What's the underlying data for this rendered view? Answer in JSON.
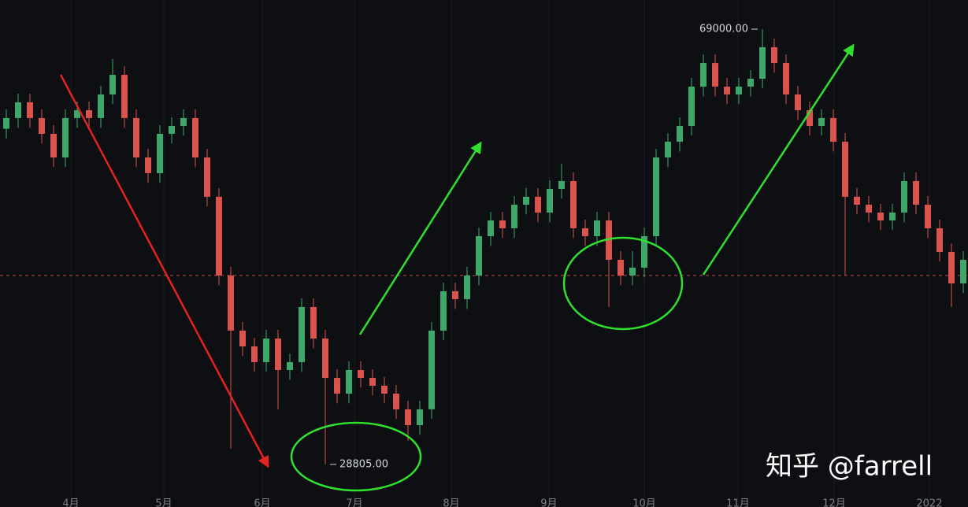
{
  "chart_data": {
    "type": "candlestick",
    "up_color": "#3da86a",
    "down_color": "#d9534f",
    "xlim": [
      -0.533,
      81.4
    ],
    "ylim": [
      24870,
      71690
    ],
    "xticks": [
      {
        "value": 5.47,
        "label": "4月"
      },
      {
        "value": 13.33,
        "label": "5月"
      },
      {
        "value": 21.67,
        "label": "6月"
      },
      {
        "value": 29.47,
        "label": "7月"
      },
      {
        "value": 37.67,
        "label": "8月"
      },
      {
        "value": 45.93,
        "label": "9月"
      },
      {
        "value": 54,
        "label": "10月"
      },
      {
        "value": 61.93,
        "label": "11月"
      },
      {
        "value": 70.07,
        "label": "12月"
      },
      {
        "value": 78.13,
        "label": "2022"
      }
    ],
    "grid": true,
    "price_line": 46250,
    "open": [
      59800,
      60790,
      62240,
      60790,
      59330,
      57150,
      60790,
      61510,
      60790,
      62970,
      64780,
      60790,
      57150,
      55700,
      59330,
      60060,
      60790,
      57150,
      53520,
      46250,
      41160,
      39700,
      38250,
      40430,
      37520,
      38250,
      43340,
      40430,
      36790,
      35340,
      37520,
      36790,
      36070,
      35340,
      33890,
      32430,
      33890,
      41160,
      44790,
      44060,
      46250,
      49880,
      51330,
      50610,
      52790,
      53520,
      52060,
      54240,
      54970,
      50610,
      49880,
      51330,
      47700,
      46250,
      46970,
      49880,
      57150,
      58600,
      60060,
      63690,
      65870,
      63690,
      62970,
      63690,
      64420,
      67330,
      65870,
      62970,
      61510,
      60060,
      60790,
      58600,
      53520,
      52790,
      52060,
      51330,
      52060,
      54970,
      52790,
      50610,
      48430,
      45520
    ],
    "high": [
      61590,
      63040,
      63040,
      61590,
      60130,
      61590,
      62310,
      62310,
      63770,
      66240,
      65580,
      61590,
      57950,
      60130,
      60860,
      61590,
      61590,
      57950,
      54320,
      47050,
      41960,
      40500,
      41230,
      41230,
      39050,
      44140,
      44140,
      41230,
      37590,
      38320,
      38320,
      37590,
      36870,
      36140,
      34690,
      34690,
      41960,
      45590,
      45590,
      47050,
      50680,
      52130,
      52130,
      53590,
      54320,
      54320,
      55040,
      56570,
      55770,
      51410,
      52130,
      52130,
      48500,
      48500,
      50680,
      57950,
      59400,
      60860,
      64490,
      66670,
      66670,
      64490,
      64490,
      65220,
      69000,
      68130,
      66670,
      63770,
      62310,
      61590,
      61590,
      59400,
      54320,
      53590,
      52860,
      52860,
      55770,
      55770,
      53590,
      51410,
      49230,
      48500
    ],
    "low": [
      58900,
      59890,
      59890,
      58430,
      56250,
      56250,
      59890,
      59890,
      59890,
      62070,
      59890,
      56250,
      54800,
      54800,
      58430,
      59160,
      56250,
      52620,
      45350,
      30250,
      38800,
      37350,
      37350,
      33890,
      36620,
      37350,
      39530,
      28805,
      34440,
      34440,
      35890,
      35170,
      34440,
      32990,
      30980,
      31530,
      32990,
      40260,
      43160,
      43160,
      45350,
      48980,
      49710,
      49710,
      51890,
      51160,
      51160,
      53340,
      49710,
      48980,
      48980,
      43340,
      45350,
      45350,
      46070,
      48980,
      56250,
      57700,
      59160,
      62790,
      62790,
      62070,
      62070,
      62790,
      63520,
      64970,
      62070,
      60610,
      59160,
      59160,
      57700,
      46250,
      51890,
      51160,
      50430,
      50430,
      51160,
      51890,
      49710,
      47530,
      43340,
      44620
    ],
    "close": [
      60790,
      62240,
      60790,
      59330,
      57150,
      60790,
      61510,
      60790,
      62970,
      64780,
      60790,
      57150,
      55700,
      59330,
      60060,
      60790,
      57150,
      53520,
      46250,
      41160,
      39700,
      38250,
      40430,
      37520,
      38250,
      43340,
      40430,
      36790,
      35340,
      37520,
      36790,
      36070,
      35340,
      33890,
      32430,
      33890,
      41160,
      44790,
      44060,
      46250,
      49880,
      51330,
      50610,
      52790,
      53520,
      52060,
      54240,
      54970,
      50610,
      49880,
      51330,
      47700,
      46250,
      46970,
      49880,
      57150,
      58600,
      60060,
      63690,
      65870,
      63690,
      62970,
      63690,
      64420,
      67330,
      65870,
      62970,
      61510,
      60060,
      60790,
      58600,
      53520,
      52790,
      52060,
      51330,
      52060,
      54970,
      52790,
      50610,
      48430,
      45520,
      47700
    ],
    "annotations": [
      {
        "index": 64,
        "value": 69000,
        "label": "69000.00",
        "side": "left"
      },
      {
        "index": 27,
        "value": 28805,
        "label": "28805.00",
        "side": "right"
      }
    ],
    "watermark": "知乎 @farrell"
  }
}
